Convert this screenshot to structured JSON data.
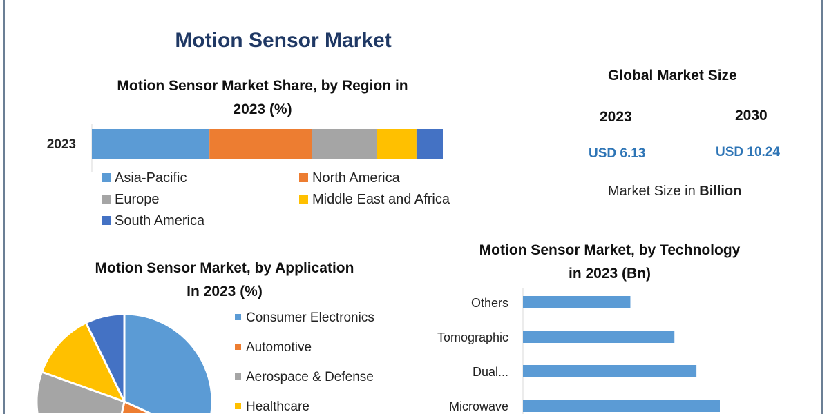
{
  "title": "Motion Sensor Market",
  "market_size": {
    "heading": "Global Market Size",
    "years": [
      "2023",
      "2030"
    ],
    "values": [
      "USD 6.13",
      "USD 10.24"
    ],
    "note_prefix": "Market Size in ",
    "note_bold": "Billion"
  },
  "colors": {
    "title": "#1f3864",
    "usd": "#2e75b6",
    "frame": "#6b7f95"
  },
  "chart_data": [
    {
      "type": "bar",
      "orientation": "horizontal-stacked",
      "title_line1": "Motion Sensor Market Share, by Region in",
      "title_line2": "2023 (%)",
      "categories": [
        "2023"
      ],
      "series": [
        {
          "name": "Asia-Pacific",
          "values": [
            33.5
          ],
          "color": "#5b9bd5"
        },
        {
          "name": "North America",
          "values": [
            29.1
          ],
          "color": "#ed7d31"
        },
        {
          "name": "Europe",
          "values": [
            18.7
          ],
          "color": "#a5a5a5"
        },
        {
          "name": "Middle East and Africa",
          "values": [
            11.2
          ],
          "color": "#ffc000"
        },
        {
          "name": "South America",
          "values": [
            7.5
          ],
          "color": "#4472c4"
        }
      ],
      "legend": "bottom"
    },
    {
      "type": "pie",
      "title_line1": "Motion Sensor Market, by Application",
      "title_line2": "In 2023 (%)",
      "slices": [
        {
          "name": "Consumer Electronics",
          "value": 45,
          "color": "#5b9bd5"
        },
        {
          "name": "Automotive",
          "value": 5.5,
          "color": "#ed7d31"
        },
        {
          "name": "Aerospace & Defense",
          "value": 30,
          "color": "#a5a5a5"
        },
        {
          "name": "Healthcare",
          "value": 12.3,
          "color": "#ffc000"
        },
        {
          "value": 7.2,
          "color": "#4472c4"
        }
      ],
      "legend": "right"
    },
    {
      "type": "bar",
      "orientation": "horizontal",
      "title_line1": "Motion Sensor Market, by Technology",
      "title_line2": "in 2023 (Bn)",
      "categories": [
        "Others",
        "Tomographic",
        "Dual...",
        "Microwave"
      ],
      "values": [
        0.78,
        1.1,
        1.26,
        1.43
      ],
      "color": "#5b9bd5"
    }
  ]
}
